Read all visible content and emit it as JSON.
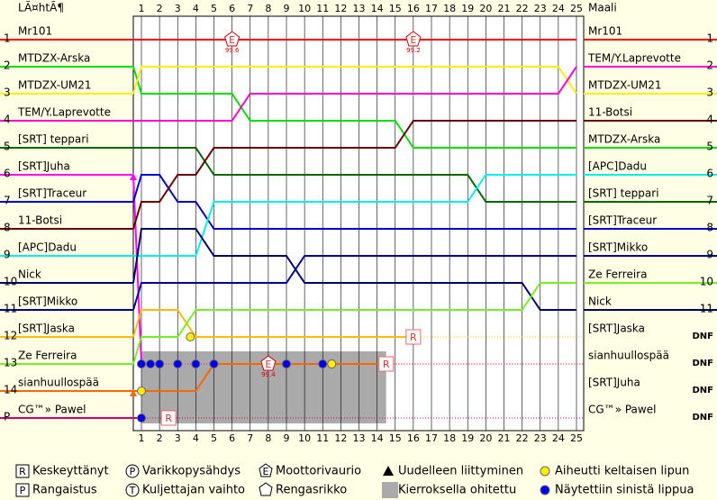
{
  "chart_data": {
    "type": "lapchart",
    "start_title": "LÃ¤htÃ¶",
    "finish_title": "Maali",
    "laps": [
      1,
      2,
      3,
      4,
      5,
      6,
      7,
      8,
      9,
      10,
      11,
      12,
      13,
      14,
      15,
      16,
      17,
      18,
      19,
      20,
      21,
      22,
      23,
      24,
      25
    ],
    "rows": [
      "1",
      "2",
      "3",
      "4",
      "5",
      "6",
      "7",
      "8",
      "9",
      "10",
      "11",
      "12",
      "13",
      "14",
      "P"
    ],
    "drivers": [
      {
        "name": "Mr101",
        "color": "#ff0000",
        "positions": [
          1,
          1,
          1,
          1,
          1,
          1,
          1,
          1,
          1,
          1,
          1,
          1,
          1,
          1,
          1,
          1,
          1,
          1,
          1,
          1,
          1,
          1,
          1,
          1,
          1,
          1
        ]
      },
      {
        "name": "MTDZX-Arska",
        "color": "#00e000",
        "positions": [
          2,
          3,
          3,
          3,
          3,
          3,
          3,
          4,
          4,
          4,
          4,
          4,
          4,
          4,
          4,
          4,
          5,
          5,
          5,
          5,
          5,
          5,
          5,
          5,
          5,
          5
        ]
      },
      {
        "name": "MTDZX-UM21",
        "color": "#ffee00",
        "positions": [
          3,
          2,
          2,
          2,
          2,
          2,
          2,
          2,
          2,
          2,
          2,
          2,
          2,
          2,
          2,
          2,
          2,
          2,
          2,
          2,
          2,
          2,
          2,
          2,
          2,
          3
        ]
      },
      {
        "name": "TEM/Y.Laprevotte",
        "color": "#ff00cc",
        "positions": [
          4,
          4,
          4,
          4,
          4,
          4,
          4,
          3,
          3,
          3,
          3,
          3,
          3,
          3,
          3,
          3,
          3,
          3,
          3,
          3,
          3,
          3,
          3,
          3,
          3,
          2
        ]
      },
      {
        "name": "[SRT] teppari",
        "color": "#006600",
        "positions": [
          5,
          5,
          5,
          5,
          5,
          6,
          6,
          6,
          6,
          6,
          6,
          6,
          6,
          6,
          6,
          6,
          6,
          6,
          6,
          6,
          7,
          7,
          7,
          7,
          7,
          7
        ]
      },
      {
        "name": "[SRT]Juha",
        "color": "#ff00ff",
        "positions": [
          6,
          13,
          null,
          null,
          null,
          null,
          null,
          null,
          null,
          null,
          null,
          null,
          null,
          null,
          null,
          null,
          null,
          null,
          null,
          null,
          null,
          null,
          null,
          null,
          null,
          null
        ]
      },
      {
        "name": "[SRT]Traceur",
        "color": "#0000cc",
        "positions": [
          7,
          6,
          6,
          7,
          7,
          8,
          8,
          8,
          8,
          8,
          8,
          8,
          8,
          8,
          8,
          8,
          8,
          8,
          8,
          8,
          8,
          8,
          8,
          8,
          8,
          8
        ]
      },
      {
        "name": "11-Botsi",
        "color": "#660000",
        "positions": [
          8,
          7,
          7,
          6,
          6,
          5,
          5,
          5,
          5,
          5,
          5,
          5,
          5,
          5,
          5,
          5,
          4,
          4,
          4,
          4,
          4,
          4,
          4,
          4,
          4,
          4
        ]
      },
      {
        "name": "[APC]Dadu",
        "color": "#00eeee",
        "positions": [
          9,
          9,
          9,
          9,
          9,
          7,
          7,
          7,
          7,
          7,
          7,
          7,
          7,
          7,
          7,
          7,
          7,
          7,
          7,
          7,
          6,
          6,
          6,
          6,
          6,
          6
        ]
      },
      {
        "name": "Nick",
        "color": "#000066",
        "positions": [
          10,
          8,
          8,
          8,
          8,
          9,
          9,
          9,
          9,
          9,
          10,
          10,
          10,
          10,
          10,
          10,
          10,
          10,
          10,
          10,
          10,
          10,
          10,
          11,
          11,
          11
        ]
      },
      {
        "name": "[SRT]Mikko",
        "color": "#000099",
        "positions": [
          11,
          10,
          10,
          10,
          10,
          10,
          10,
          10,
          10,
          10,
          9,
          9,
          9,
          9,
          9,
          9,
          9,
          9,
          9,
          9,
          9,
          9,
          9,
          9,
          9,
          9
        ]
      },
      {
        "name": "[SRT]Jaska",
        "color": "#ffbb00",
        "positions": [
          12,
          11,
          11,
          11,
          12,
          12,
          12,
          12,
          12,
          12,
          12,
          12,
          12,
          12,
          12,
          12,
          12,
          null,
          null,
          null,
          null,
          null,
          null,
          null,
          null,
          null
        ]
      },
      {
        "name": "Ze Ferreira",
        "color": "#77ee22",
        "positions": [
          13,
          12,
          12,
          12,
          11,
          11,
          11,
          11,
          11,
          11,
          11,
          11,
          11,
          11,
          11,
          11,
          11,
          11,
          11,
          11,
          11,
          11,
          11,
          10,
          10,
          10
        ]
      },
      {
        "name": "sianhuullospää",
        "color": "#ff6600",
        "positions": [
          14,
          14,
          14,
          14,
          14,
          13,
          13,
          13,
          13,
          13,
          13,
          13,
          13,
          13,
          13,
          null,
          null,
          null,
          null,
          null,
          null,
          null,
          null,
          null,
          null,
          null
        ]
      },
      {
        "name": "CG™» Pawel",
        "color": "#cc0066",
        "positions": [
          15,
          15,
          null,
          null,
          null,
          null,
          null,
          null,
          null,
          null,
          null,
          null,
          null,
          null,
          null,
          null,
          null,
          null,
          null,
          null,
          null,
          null,
          null,
          null,
          null,
          null
        ]
      }
    ],
    "finish": [
      {
        "name": "Mr101",
        "result": "1"
      },
      {
        "name": "TEM/Y.Laprevotte",
        "result": "2"
      },
      {
        "name": "MTDZX-UM21",
        "result": "3"
      },
      {
        "name": "11-Botsi",
        "result": "4"
      },
      {
        "name": "MTDZX-Arska",
        "result": "5"
      },
      {
        "name": "[APC]Dadu",
        "result": "6"
      },
      {
        "name": "[SRT] teppari",
        "result": "7"
      },
      {
        "name": "[SRT]Traceur",
        "result": "8"
      },
      {
        "name": "[SRT]Mikko",
        "result": "9"
      },
      {
        "name": "Ze Ferreira",
        "result": "10"
      },
      {
        "name": "Nick",
        "result": "11"
      },
      {
        "name": "[SRT]Jaska",
        "result": "DNF"
      },
      {
        "name": "sianhuullospää",
        "result": "DNF"
      },
      {
        "name": "[SRT]Juha",
        "result": "DNF"
      },
      {
        "name": "CG™» Pawel",
        "result": "DNF"
      }
    ],
    "lapped": {
      "laps": [
        1,
        14.5
      ],
      "rows": [
        13,
        15
      ]
    },
    "icons": [
      {
        "symbol": "E",
        "lap": 6,
        "row": 1,
        "note": "99.6"
      },
      {
        "symbol": "E",
        "lap": 16,
        "row": 1,
        "note": "99.2"
      },
      {
        "symbol": "R",
        "lap": 16,
        "row": 12
      },
      {
        "symbol": "E",
        "lap": 8,
        "row": 13,
        "note": "99.4"
      },
      {
        "symbol": "R",
        "lap": 14.5,
        "row": 13
      },
      {
        "symbol": "R",
        "lap": 2.5,
        "row": 15
      }
    ],
    "flags": [
      {
        "color": "blue",
        "lap": 1,
        "row": 13
      },
      {
        "color": "blue",
        "lap": 1.5,
        "row": 13
      },
      {
        "color": "blue",
        "lap": 2,
        "row": 13
      },
      {
        "color": "blue",
        "lap": 3,
        "row": 13
      },
      {
        "color": "blue",
        "lap": 4,
        "row": 13
      },
      {
        "color": "blue",
        "lap": 5,
        "row": 13
      },
      {
        "color": "blue",
        "lap": 9,
        "row": 13
      },
      {
        "color": "blue",
        "lap": 11,
        "row": 13
      },
      {
        "color": "yellow",
        "lap": 11.5,
        "row": 13
      },
      {
        "color": "yellow",
        "lap": 3.7,
        "row": 12
      },
      {
        "color": "yellow",
        "lap": 1,
        "row": 14
      },
      {
        "color": "blue",
        "lap": 1,
        "row": 15
      }
    ],
    "legend": [
      {
        "symbol": "R",
        "shape": "box",
        "label": "Keskeyttänyt"
      },
      {
        "symbol": "P",
        "shape": "circle",
        "label": "Varikkopysähdys"
      },
      {
        "symbol": "E",
        "shape": "pentagon",
        "label": "Moottorivaurio"
      },
      {
        "shape": "triangle",
        "label": "Uudelleen liittyminen"
      },
      {
        "shape": "yellow",
        "label": "Aiheutti keltaisen lipun"
      },
      {
        "symbol": "P",
        "shape": "box",
        "label": "Rangaistus"
      },
      {
        "symbol": "T",
        "shape": "circle",
        "label": "Kuljettajan vaihto"
      },
      {
        "shape": "pentagon",
        "label": "Rengasrikko"
      },
      {
        "shape": "gray",
        "label": "Kierroksella ohitettu"
      },
      {
        "shape": "blue",
        "label": "Näytettiin sinistä lippua"
      }
    ]
  }
}
